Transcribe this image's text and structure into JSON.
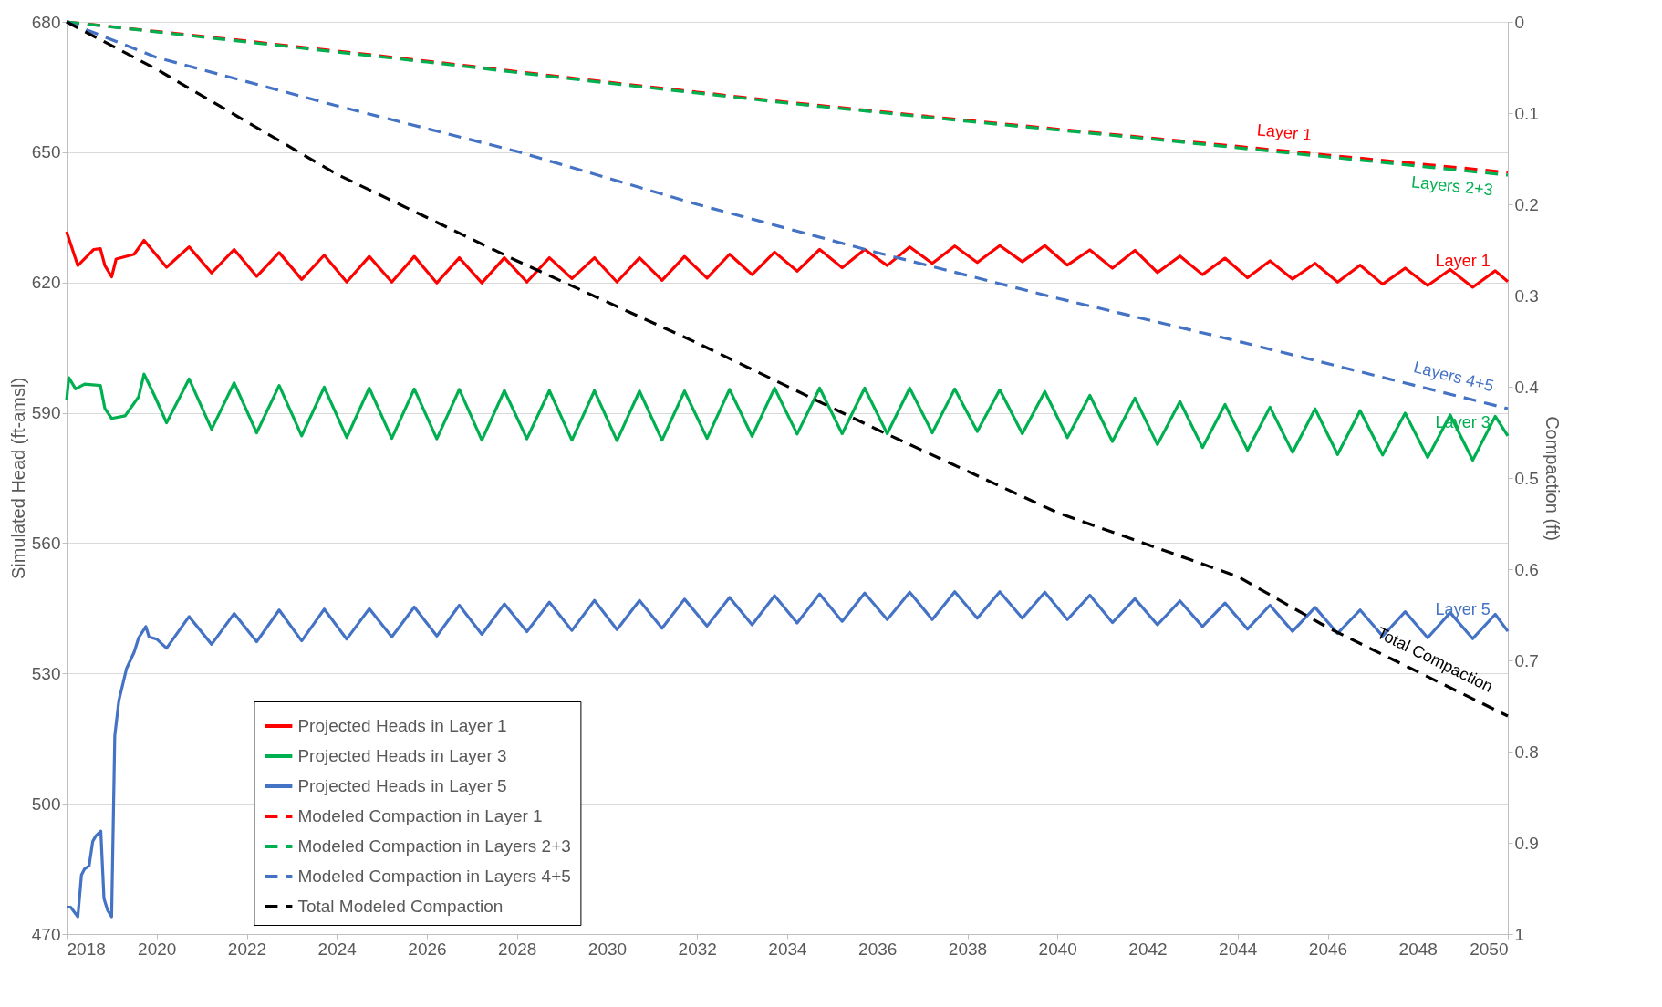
{
  "chart_data": {
    "type": "line",
    "ylabel": "Simulated Head (ft-amsl)",
    "y2label": "Compaction (ft)",
    "xlim": [
      2018,
      2050
    ],
    "xticks": [
      2018,
      2020,
      2022,
      2024,
      2026,
      2028,
      2030,
      2032,
      2034,
      2036,
      2038,
      2040,
      2042,
      2044,
      2046,
      2048,
      2050
    ],
    "ylim": [
      470,
      680
    ],
    "yticks": [
      470,
      500,
      530,
      560,
      590,
      620,
      650,
      680
    ],
    "y2lim": [
      1,
      0
    ],
    "y2ticks": [
      0,
      0.1,
      0.2,
      0.3,
      0.4,
      0.5,
      0.6,
      0.7,
      0.8,
      0.9,
      1
    ],
    "grid": "y",
    "legend": "bottom left",
    "series": [
      {
        "name": "Projected Heads in Layer 1",
        "color": "#ff0000",
        "line_style": "solid",
        "x": [
          2018,
          2018.25,
          2018.6,
          2018.75,
          2018.85,
          2019.0,
          2019.1,
          2019.5,
          2019.72,
          2020.22,
          2020.72,
          2021.22,
          2021.72,
          2022.22,
          2022.72,
          2023.22,
          2023.72,
          2024.22,
          2024.72,
          2025.22,
          2025.72,
          2026.22,
          2026.72,
          2027.22,
          2027.72,
          2028.22,
          2028.72,
          2029.22,
          2029.72,
          2030.22,
          2030.72,
          2031.22,
          2031.72,
          2032.22,
          2032.72,
          2033.22,
          2033.72,
          2034.22,
          2034.72,
          2035.22,
          2035.72,
          2036.22,
          2036.72,
          2037.22,
          2037.72,
          2038.22,
          2038.72,
          2039.22,
          2039.72,
          2040.22,
          2040.72,
          2041.22,
          2041.72,
          2042.22,
          2042.72,
          2043.22,
          2043.72,
          2044.22,
          2044.72,
          2045.22,
          2045.72,
          2046.22,
          2046.72,
          2047.22,
          2047.72,
          2048.22,
          2048.72,
          2049.22,
          2049.72,
          2050
        ],
        "values": [
          631.7,
          623.9,
          627.6,
          627.8,
          623.9,
          621.3,
          625.4,
          626.5,
          629.7,
          623.5,
          628.2,
          622.2,
          627.6,
          621.4,
          626.9,
          620.7,
          626.3,
          620.1,
          626.0,
          620.1,
          626.0,
          619.9,
          625.7,
          619.9,
          625.7,
          620.1,
          625.7,
          620.9,
          625.7,
          620.1,
          625.7,
          620.5,
          626.0,
          621.0,
          626.5,
          621.8,
          627.0,
          622.6,
          627.6,
          623.4,
          627.6,
          623.9,
          628.2,
          624.4,
          628.4,
          624.6,
          628.5,
          624.8,
          628.5,
          624.0,
          627.5,
          623.3,
          627.4,
          622.3,
          626.1,
          621.8,
          625.6,
          621.1,
          625.0,
          620.8,
          624.4,
          620.1,
          624.0,
          619.6,
          623.3,
          619.3,
          623.0,
          618.9,
          622.7,
          620.2
        ]
      },
      {
        "name": "Projected Heads in Layer 3",
        "color": "#00b050",
        "line_style": "solid",
        "x": [
          2018,
          2018.05,
          2018.2,
          2018.4,
          2018.75,
          2018.85,
          2019.0,
          2019.3,
          2019.6,
          2019.72,
          2019.95,
          2020.22,
          2020.72,
          2021.22,
          2021.72,
          2022.22,
          2022.72,
          2023.22,
          2023.72,
          2024.22,
          2024.72,
          2025.22,
          2025.72,
          2026.22,
          2026.72,
          2027.22,
          2027.72,
          2028.22,
          2028.72,
          2029.22,
          2029.72,
          2030.22,
          2030.72,
          2031.22,
          2031.72,
          2032.22,
          2032.72,
          2033.22,
          2033.72,
          2034.22,
          2034.72,
          2035.22,
          2035.72,
          2036.22,
          2036.72,
          2037.22,
          2037.72,
          2038.22,
          2038.72,
          2039.22,
          2039.72,
          2040.22,
          2040.72,
          2041.22,
          2041.72,
          2042.22,
          2042.72,
          2043.22,
          2043.72,
          2044.22,
          2044.72,
          2045.22,
          2045.72,
          2046.22,
          2046.72,
          2047.22,
          2047.72,
          2048.22,
          2048.72,
          2049.22,
          2049.72,
          2050
        ],
        "values": [
          592.9,
          598.1,
          595.5,
          596.6,
          596.3,
          591.0,
          588.7,
          589.3,
          593.7,
          598.9,
          594.0,
          587.7,
          597.8,
          586.2,
          596.9,
          585.4,
          596.3,
          584.7,
          595.9,
          584.3,
          595.7,
          584.1,
          595.5,
          584.0,
          595.4,
          583.7,
          595.1,
          584.0,
          595.1,
          583.7,
          595.1,
          583.6,
          595.0,
          583.7,
          595.0,
          584.1,
          595.4,
          584.6,
          595.7,
          585.1,
          595.7,
          585.2,
          595.7,
          585.2,
          595.7,
          585.4,
          595.5,
          585.7,
          595.3,
          585.2,
          594.9,
          584.3,
          594.0,
          583.4,
          593.4,
          582.7,
          592.6,
          582.0,
          591.9,
          581.4,
          591.3,
          580.9,
          590.9,
          580.4,
          590.5,
          580.3,
          589.9,
          579.7,
          589.5,
          579.1,
          589.2,
          584.7
        ]
      },
      {
        "name": "Projected Heads in Layer 5",
        "color": "#4472c4",
        "line_style": "solid",
        "x": [
          2018,
          2018.09,
          2018.25,
          2018.33,
          2018.4,
          2018.5,
          2018.58,
          2018.65,
          2018.76,
          2018.83,
          2018.91,
          2019.0,
          2019.07,
          2019.16,
          2019.33,
          2019.5,
          2019.6,
          2019.76,
          2019.83,
          2020.0,
          2020.22,
          2020.72,
          2021.22,
          2021.72,
          2022.22,
          2022.72,
          2023.22,
          2023.72,
          2024.22,
          2024.72,
          2025.22,
          2025.72,
          2026.22,
          2026.72,
          2027.22,
          2027.72,
          2028.22,
          2028.72,
          2029.22,
          2029.72,
          2030.22,
          2030.72,
          2031.22,
          2031.72,
          2032.22,
          2032.72,
          2033.22,
          2033.72,
          2034.22,
          2034.72,
          2035.22,
          2035.72,
          2036.22,
          2036.72,
          2037.22,
          2037.72,
          2038.22,
          2038.72,
          2039.22,
          2039.72,
          2040.22,
          2040.72,
          2041.22,
          2041.72,
          2042.22,
          2042.72,
          2043.22,
          2043.72,
          2044.22,
          2044.72,
          2045.22,
          2045.72,
          2046.22,
          2046.72,
          2047.22,
          2047.72,
          2048.22,
          2048.72,
          2049.22,
          2049.72,
          2050
        ],
        "values": [
          476.2,
          476.2,
          474.0,
          483.6,
          485.0,
          485.7,
          491.3,
          492.6,
          493.7,
          478.2,
          475.5,
          474.0,
          515.6,
          523.7,
          531.1,
          534.9,
          538.2,
          540.8,
          538.4,
          537.9,
          535.8,
          543.1,
          536.7,
          543.8,
          537.3,
          544.6,
          537.5,
          544.8,
          537.9,
          544.9,
          538.4,
          545.3,
          538.6,
          545.7,
          539.0,
          546.0,
          539.6,
          546.4,
          539.9,
          546.8,
          540.1,
          546.8,
          540.4,
          547.1,
          540.9,
          547.5,
          541.2,
          547.9,
          541.6,
          548.3,
          542.0,
          548.5,
          542.4,
          548.7,
          542.4,
          548.8,
          542.7,
          548.8,
          542.7,
          548.7,
          542.4,
          548.0,
          541.7,
          547.2,
          541.2,
          546.7,
          540.8,
          546.2,
          540.2,
          545.7,
          539.7,
          545.2,
          539.2,
          544.6,
          538.6,
          544.2,
          538.2,
          544.0,
          538.0,
          543.6,
          539.7
        ]
      },
      {
        "name": "Modeled Compaction in Layer 1",
        "color": "#ff0000",
        "line_style": "dashed",
        "axis": "y2",
        "x": [
          2018,
          2022,
          2026,
          2030,
          2034,
          2038,
          2042,
          2046,
          2050
        ],
        "values": [
          0,
          0.021,
          0.043,
          0.066,
          0.088,
          0.108,
          0.127,
          0.146,
          0.165
        ]
      },
      {
        "name": "Modeled Compaction in Layers 2+3",
        "color": "#00b050",
        "line_style": "dashed",
        "axis": "y2",
        "x": [
          2018,
          2022,
          2026,
          2030,
          2034,
          2038,
          2042,
          2046,
          2050
        ],
        "values": [
          0,
          0.022,
          0.044,
          0.067,
          0.089,
          0.109,
          0.128,
          0.148,
          0.168
        ]
      },
      {
        "name": "Modeled Compaction in Layers 4+5",
        "color": "#4472c4",
        "line_style": "dashed",
        "axis": "y2",
        "x": [
          2018,
          2020,
          2024,
          2028,
          2032,
          2036,
          2040,
          2044,
          2050
        ],
        "values": [
          0,
          0.039,
          0.092,
          0.142,
          0.2,
          0.253,
          0.303,
          0.35,
          0.424
        ]
      },
      {
        "name": "Total Modeled Compaction",
        "color": "#000000",
        "line_style": "dashed",
        "axis": "y2",
        "x": [
          2018,
          2020,
          2024,
          2028,
          2032,
          2036,
          2040,
          2044,
          2046,
          2050
        ],
        "values": [
          0,
          0.052,
          0.167,
          0.262,
          0.352,
          0.447,
          0.538,
          0.608,
          0.664,
          0.761
        ]
      }
    ],
    "annotations": [
      {
        "text": "Layer 1",
        "x": 2045.0,
        "y": 650.4
      },
      {
        "text": "Layers 2+3",
        "x": 2048.8,
        "y": 646.0
      },
      {
        "text": "Layer 1",
        "x": 2049.0,
        "y": 620.7
      },
      {
        "text": "Layers 4+5",
        "x": 2048.7,
        "y": 594.3
      },
      {
        "text": "Layer 3",
        "x": 2049.0,
        "y": 583.7
      },
      {
        "text": "Layer 5",
        "x": 2049.0,
        "y": 540.6
      },
      {
        "text": "Total Compaction",
        "x": 2048.2,
        "y": 529.4
      }
    ]
  }
}
